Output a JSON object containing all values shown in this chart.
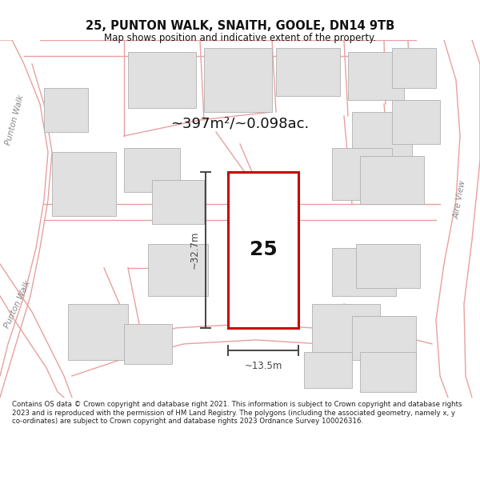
{
  "title": "25, PUNTON WALK, SNAITH, GOOLE, DN14 9TB",
  "subtitle": "Map shows position and indicative extent of the property.",
  "area_text": "~397m²/~0.098ac.",
  "dim_width": "~13.5m",
  "dim_height": "~32.7m",
  "property_number": "25",
  "footer": "Contains OS data © Crown copyright and database right 2021. This information is subject to Crown copyright and database rights 2023 and is reproduced with the permission of HM Land Registry. The polygons (including the associated geometry, namely x, y co-ordinates) are subject to Crown copyright and database rights 2023 Ordnance Survey 100026316.",
  "bg_color": "#ffffff",
  "map_bg": "#ffffff",
  "road_line_color": "#e8a0a0",
  "building_fill": "#e0e0e0",
  "building_edge": "#b0b0b0",
  "highlight_fill": "#ffffff",
  "highlight_edge": "#cc0000",
  "dim_color": "#444444",
  "street_label_color": "#888888",
  "title_color": "#111111",
  "footer_color": "#222222"
}
